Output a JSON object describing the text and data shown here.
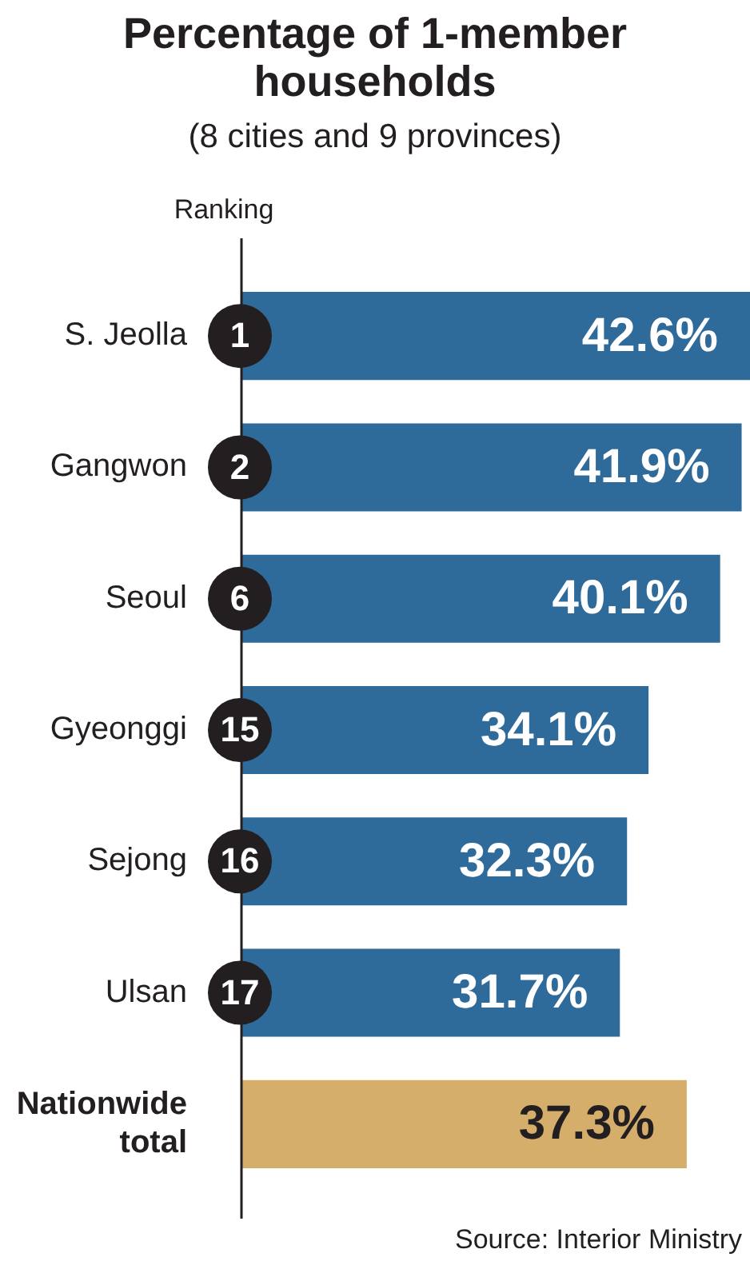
{
  "chart_data": {
    "type": "bar",
    "orientation": "horizontal",
    "title": "Percentage of 1-member households",
    "subtitle": "(8 cities and 9 provinces)",
    "categories": [
      "S. Jeolla",
      "Gangwon",
      "Seoul",
      "Gyeonggi",
      "Sejong",
      "Ulsan",
      "Nationwide total"
    ],
    "values": [
      42.6,
      41.9,
      40.1,
      34.1,
      32.3,
      31.7,
      37.3
    ],
    "value_labels": [
      "42.6%",
      "41.9%",
      "40.1%",
      "34.1%",
      "32.3%",
      "31.7%",
      "37.3%"
    ],
    "colors": [
      "#2e6b9b",
      "#2e6b9b",
      "#2e6b9b",
      "#2e6b9b",
      "#2e6b9b",
      "#2e6b9b",
      "#d5ae6c"
    ],
    "annotations": [
      "Ranking",
      {
        "text": "1",
        "y": "S. Jeolla"
      },
      {
        "text": "2",
        "y": "Gangwon"
      },
      {
        "text": "6",
        "y": "Seoul"
      },
      {
        "text": "15",
        "y": "Gyeonggi"
      },
      {
        "text": "16",
        "y": "Sejong"
      },
      {
        "text": "17",
        "y": "Ulsan"
      },
      "Source: Interior Ministry"
    ],
    "grid": false,
    "legend": false
  }
}
